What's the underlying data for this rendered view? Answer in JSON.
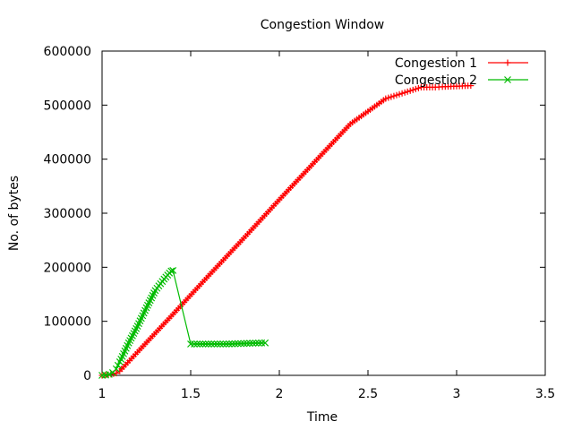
{
  "chart_data": {
    "type": "line",
    "title": "Congestion Window",
    "xlabel": "Time",
    "ylabel": "No. of bytes",
    "xlim": [
      1,
      3.5
    ],
    "ylim": [
      0,
      600000
    ],
    "xticks": [
      "1",
      "1.5",
      "2",
      "2.5",
      "3",
      "3.5"
    ],
    "yticks": [
      "0",
      "100000",
      "200000",
      "300000",
      "400000",
      "500000",
      "600000"
    ],
    "grid": false,
    "legend_position": "top-right",
    "series": [
      {
        "name": "Congestion 1",
        "color": "#ff0000",
        "marker": "+",
        "x": [
          1.0,
          1.02,
          1.05,
          1.08,
          1.1,
          1.2,
          1.4,
          1.6,
          1.8,
          2.0,
          2.2,
          2.4,
          2.6,
          2.8,
          2.88,
          2.92,
          3.0,
          3.08
        ],
        "y": [
          0,
          500,
          2000,
          4000,
          8000,
          43000,
          113000,
          184000,
          254000,
          325000,
          395000,
          465000,
          512000,
          533000,
          533000,
          534000,
          535000,
          536000
        ]
      },
      {
        "name": "Congestion 2",
        "color": "#00bb00",
        "marker": "x",
        "x": [
          1.0,
          1.02,
          1.04,
          1.06,
          1.08,
          1.1,
          1.15,
          1.2,
          1.25,
          1.3,
          1.35,
          1.39,
          1.4,
          1.5,
          1.52,
          1.6,
          1.7,
          1.8,
          1.9,
          1.92
        ],
        "y": [
          0,
          500,
          2000,
          5000,
          12000,
          25000,
          60000,
          91000,
          125000,
          157000,
          178000,
          193000,
          194000,
          58000,
          58000,
          58000,
          58000,
          59000,
          60000,
          60000
        ]
      }
    ]
  }
}
